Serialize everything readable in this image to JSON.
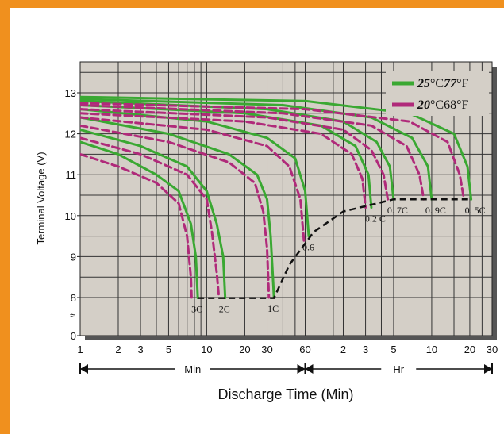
{
  "chart_data": {
    "type": "line",
    "title": "",
    "xlabel": "Discharge Time (Min)",
    "ylabel": "Terminal Voltage (V)",
    "ylim": [
      0,
      14
    ],
    "x_scale": "log",
    "x_tick_labels": [
      "1",
      "2",
      "3",
      "5",
      "10",
      "20",
      "30",
      "60",
      "2",
      "3",
      "5",
      "10",
      "20",
      "30"
    ],
    "x_tick_values_min": [
      1,
      2,
      3,
      5,
      10,
      20,
      30,
      60,
      120,
      180,
      300,
      600,
      1200,
      1800
    ],
    "y_ticks": [
      0,
      8,
      9,
      10,
      11,
      12,
      13
    ],
    "y_break_symbol": "≈",
    "unit_spans": [
      {
        "label": "Min",
        "from": 1,
        "to": 60
      },
      {
        "label": "Hr",
        "from": 60,
        "to": 1800
      }
    ],
    "grid": true,
    "legend_position": "top-right",
    "legend": [
      {
        "label_bold": "25",
        "label_rest": "°C",
        "label_bold2": "77",
        "label_rest2": "°F",
        "color": "#3aa832"
      },
      {
        "label_bold": "20",
        "label_rest": "°C68",
        "label_bold2": "",
        "label_rest2": "°F",
        "color": "#b02a7a"
      }
    ],
    "series": [
      {
        "rate": "3C",
        "label": "3C",
        "temp": "25C",
        "color": "#3aa832",
        "dashed": false,
        "points": [
          [
            1,
            11.8
          ],
          [
            2,
            11.5
          ],
          [
            4,
            11.0
          ],
          [
            6,
            10.6
          ],
          [
            7.5,
            9.8
          ],
          [
            8.2,
            9.0
          ],
          [
            8.5,
            7.9
          ]
        ]
      },
      {
        "rate": "3C",
        "temp": "20C",
        "color": "#b02a7a",
        "dashed": true,
        "points": [
          [
            1,
            11.5
          ],
          [
            2,
            11.2
          ],
          [
            4,
            10.8
          ],
          [
            6,
            10.3
          ],
          [
            7,
            9.5
          ],
          [
            7.5,
            8.5
          ],
          [
            7.6,
            7.9
          ]
        ]
      },
      {
        "rate": "2C",
        "label": "2C",
        "temp": "25C",
        "color": "#3aa832",
        "dashed": false,
        "points": [
          [
            1,
            12.1
          ],
          [
            3,
            11.7
          ],
          [
            7,
            11.2
          ],
          [
            10,
            10.6
          ],
          [
            12,
            9.8
          ],
          [
            13.5,
            9.0
          ],
          [
            14,
            7.9
          ]
        ]
      },
      {
        "rate": "2C",
        "temp": "20C",
        "color": "#b02a7a",
        "dashed": true,
        "points": [
          [
            1,
            11.9
          ],
          [
            3,
            11.5
          ],
          [
            7,
            11.0
          ],
          [
            10,
            10.4
          ],
          [
            11,
            9.6
          ],
          [
            12,
            8.6
          ],
          [
            12.5,
            7.9
          ]
        ]
      },
      {
        "rate": "1C",
        "label": "1C",
        "temp": "25C",
        "color": "#3aa832",
        "dashed": false,
        "points": [
          [
            1,
            12.4
          ],
          [
            5,
            12.0
          ],
          [
            15,
            11.5
          ],
          [
            25,
            11.0
          ],
          [
            30,
            10.4
          ],
          [
            32,
            9.5
          ],
          [
            34,
            8.0
          ]
        ]
      },
      {
        "rate": "1C",
        "temp": "20C",
        "color": "#b02a7a",
        "dashed": true,
        "points": [
          [
            1,
            12.2
          ],
          [
            5,
            11.8
          ],
          [
            15,
            11.3
          ],
          [
            24,
            10.8
          ],
          [
            28,
            10.1
          ],
          [
            30,
            9.2
          ],
          [
            31,
            8.0
          ]
        ]
      },
      {
        "rate": "0.6C",
        "label": "0.6",
        "temp": "25C",
        "color": "#3aa832",
        "dashed": false,
        "points": [
          [
            1,
            12.6
          ],
          [
            10,
            12.3
          ],
          [
            30,
            11.9
          ],
          [
            50,
            11.4
          ],
          [
            60,
            10.6
          ],
          [
            64,
            9.5
          ]
        ]
      },
      {
        "rate": "0.6C",
        "temp": "20C",
        "color": "#b02a7a",
        "dashed": true,
        "points": [
          [
            1,
            12.4
          ],
          [
            10,
            12.1
          ],
          [
            30,
            11.7
          ],
          [
            45,
            11.2
          ],
          [
            55,
            10.4
          ],
          [
            59,
            9.3
          ]
        ]
      },
      {
        "rate": "0.2C",
        "label": "0.2  C",
        "temp": "25C",
        "color": "#3aa832",
        "dashed": false,
        "points": [
          [
            1,
            12.7
          ],
          [
            20,
            12.5
          ],
          [
            80,
            12.2
          ],
          [
            150,
            11.7
          ],
          [
            190,
            11.0
          ],
          [
            200,
            10.2
          ]
        ]
      },
      {
        "rate": "0.2C",
        "temp": "20C",
        "color": "#b02a7a",
        "dashed": true,
        "points": [
          [
            1,
            12.5
          ],
          [
            20,
            12.3
          ],
          [
            80,
            12.0
          ],
          [
            140,
            11.5
          ],
          [
            170,
            10.9
          ],
          [
            180,
            10.2
          ]
        ]
      },
      {
        "rate": "0.7C",
        "label": "0.  7C",
        "temp": "25C",
        "color": "#3aa832",
        "dashed": false,
        "points": [
          [
            1,
            12.8
          ],
          [
            30,
            12.6
          ],
          [
            120,
            12.3
          ],
          [
            220,
            11.8
          ],
          [
            280,
            11.2
          ],
          [
            300,
            10.4
          ]
        ]
      },
      {
        "rate": "0.7C",
        "temp": "20C",
        "color": "#b02a7a",
        "dashed": true,
        "points": [
          [
            1,
            12.6
          ],
          [
            30,
            12.4
          ],
          [
            120,
            12.1
          ],
          [
            200,
            11.6
          ],
          [
            250,
            11.0
          ],
          [
            270,
            10.4
          ]
        ]
      },
      {
        "rate": "0.9C",
        "label": "0.  9C",
        "temp": "25C",
        "color": "#3aa832",
        "dashed": false,
        "points": [
          [
            1,
            12.85
          ],
          [
            40,
            12.7
          ],
          [
            200,
            12.4
          ],
          [
            420,
            11.9
          ],
          [
            560,
            11.2
          ],
          [
            600,
            10.4
          ]
        ]
      },
      {
        "rate": "0.9C",
        "temp": "20C",
        "color": "#b02a7a",
        "dashed": true,
        "points": [
          [
            1,
            12.7
          ],
          [
            40,
            12.5
          ],
          [
            200,
            12.2
          ],
          [
            380,
            11.7
          ],
          [
            480,
            11.0
          ],
          [
            520,
            10.4
          ]
        ]
      },
      {
        "rate": "0.5C",
        "label": "0.  5C",
        "temp": "25C",
        "color": "#3aa832",
        "dashed": false,
        "points": [
          [
            1,
            12.9
          ],
          [
            60,
            12.8
          ],
          [
            400,
            12.5
          ],
          [
            900,
            12.0
          ],
          [
            1150,
            11.2
          ],
          [
            1230,
            10.4
          ]
        ]
      },
      {
        "rate": "0.5C",
        "temp": "20C",
        "color": "#b02a7a",
        "dashed": true,
        "points": [
          [
            1,
            12.75
          ],
          [
            60,
            12.6
          ],
          [
            400,
            12.3
          ],
          [
            800,
            11.8
          ],
          [
            1000,
            11.0
          ],
          [
            1080,
            10.4
          ]
        ]
      }
    ],
    "cutoff_line": {
      "color": "#111111",
      "dashed": true,
      "points": [
        [
          8.5,
          7.9
        ],
        [
          34,
          7.9
        ],
        [
          45,
          8.8
        ],
        [
          70,
          9.6
        ],
        [
          120,
          10.1
        ],
        [
          300,
          10.4
        ],
        [
          1230,
          10.4
        ]
      ]
    }
  }
}
